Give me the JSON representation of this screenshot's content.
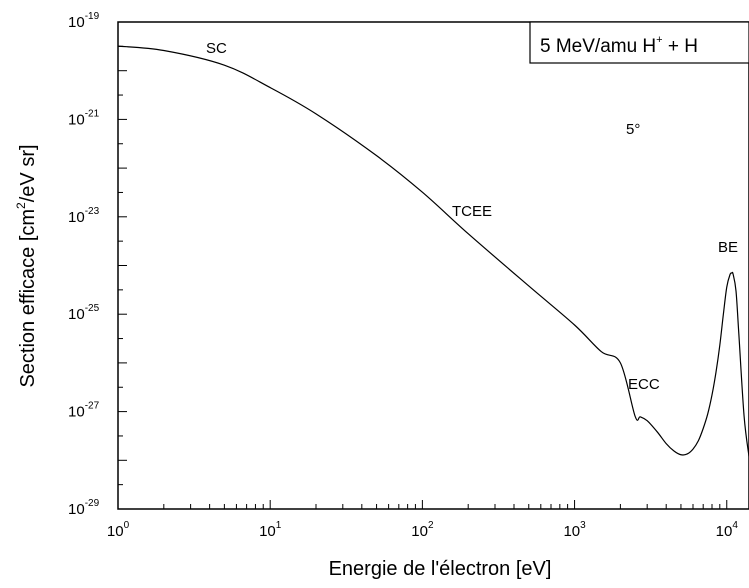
{
  "chart_data": {
    "type": "line",
    "title": "",
    "xlabel": "Energie de l'électron [eV]",
    "ylabel_parts": [
      "Section efficace [cm",
      "2",
      "/eV sr]"
    ],
    "xscale": "log",
    "yscale": "log",
    "xlim": [
      1,
      14000
    ],
    "ylim": [
      1e-29,
      1e-19
    ],
    "grid": false,
    "x_ticks": [
      {
        "base": "10",
        "exp": "0"
      },
      {
        "base": "10",
        "exp": "1"
      },
      {
        "base": "10",
        "exp": "2"
      },
      {
        "base": "10",
        "exp": "3"
      },
      {
        "base": "10",
        "exp": "4"
      }
    ],
    "y_ticks": [
      {
        "base": "10",
        "exp": "-19"
      },
      {
        "base": "10",
        "exp": "-21"
      },
      {
        "base": "10",
        "exp": "-23"
      },
      {
        "base": "10",
        "exp": "-25"
      },
      {
        "base": "10",
        "exp": "-27"
      },
      {
        "base": "10",
        "exp": "-29"
      }
    ],
    "legend_box": {
      "text_main": "5 MeV/amu H",
      "text_sup": "+",
      "text_tail": " + H",
      "placement": "top-right"
    },
    "annotations": {
      "angle": "5°",
      "sc": "SC",
      "tcee": "TCEE",
      "ecc": "ECC",
      "be": "BE"
    },
    "series": [
      {
        "color": "#000000",
        "x": [
          1,
          2,
          5,
          10,
          20,
          50,
          100,
          200,
          500,
          1000,
          1500,
          2000,
          2500,
          2700,
          3000,
          3500,
          4000,
          4500,
          5000,
          5500,
          6000,
          6500,
          7000,
          7500,
          8000,
          8500,
          9000,
          9500,
          10000,
          10500,
          10800,
          11000,
          11500,
          12000,
          13000,
          14000
        ],
        "y": [
          3.2e-20,
          2.6e-20,
          1.3e-20,
          4.5e-21,
          1.3e-21,
          1.8e-22,
          3.2e-23,
          4.5e-24,
          3.8e-25,
          6e-26,
          1.7e-26,
          1e-26,
          8e-28,
          7.8e-28,
          6.5e-28,
          3.8e-28,
          2.2e-28,
          1.55e-28,
          1.3e-28,
          1.35e-28,
          1.7e-28,
          2.5e-28,
          4.5e-28,
          9e-28,
          2.2e-27,
          6.5e-27,
          2.3e-26,
          1e-25,
          3.6e-25,
          6.5e-25,
          7e-25,
          6.7e-25,
          3e-25,
          4e-26,
          8e-28,
          1.2e-28
        ]
      }
    ]
  }
}
